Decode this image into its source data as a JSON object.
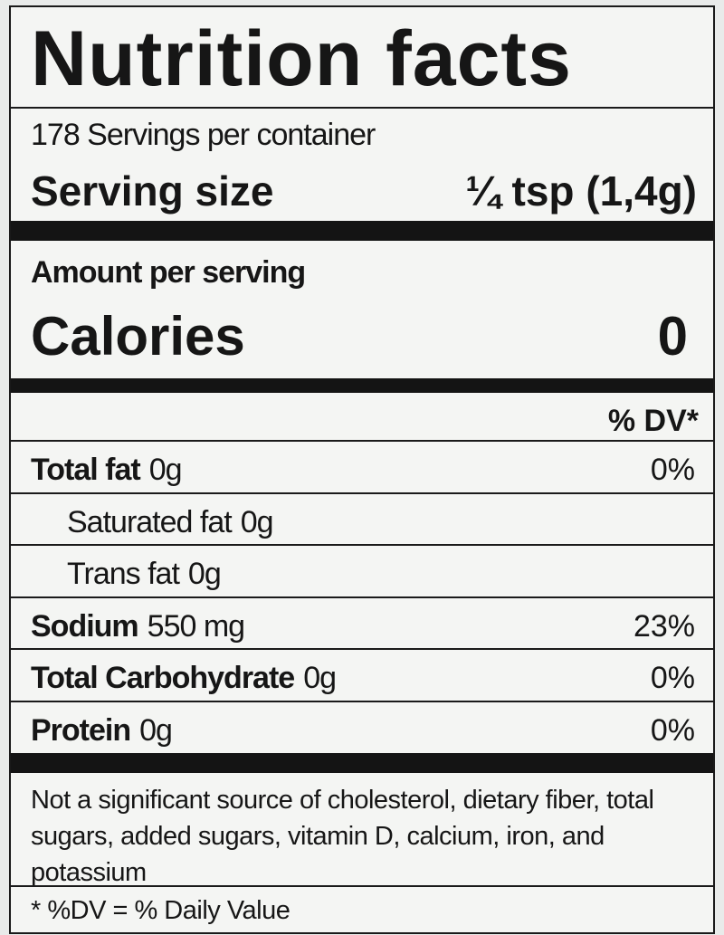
{
  "title": "Nutrition facts",
  "servings": "178 Servings per container",
  "serving_size": {
    "label": "Serving size",
    "value": "¼ tsp (1,4g)"
  },
  "amount_per_serving": "Amount per serving",
  "calories": {
    "label": "Calories",
    "value": 0
  },
  "dv_header": "% DV*",
  "rows": [
    {
      "name": "Total fat",
      "amount": "0g",
      "dv": "0%",
      "bold": true
    },
    {
      "name": "Saturated fat",
      "amount": "0g",
      "bold": false
    },
    {
      "name": "Trans fat",
      "amount": "0g",
      "bold": false
    },
    {
      "name": "Sodium",
      "amount": "550 mg",
      "dv": "23%",
      "bold": true
    },
    {
      "name": "Total Carbohydrate",
      "amount": "0g",
      "dv": "0%",
      "bold": true
    },
    {
      "name": "Protein",
      "amount": "0g",
      "dv": "0%",
      "bold": true
    }
  ],
  "footnote": "Not a significant source of cholesterol, dietary fiber, total sugars, added sugars, vitamin D, calcium, iron, and potassium",
  "dv_note": "* %DV = % Daily Value"
}
